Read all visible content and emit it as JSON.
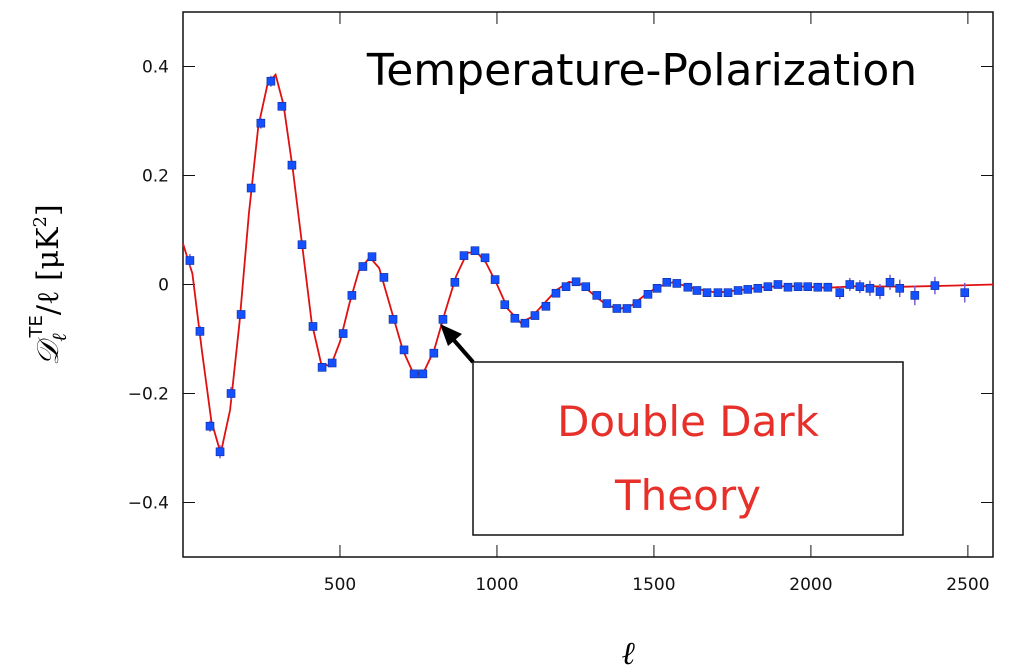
{
  "chart_data": {
    "type": "scatter",
    "title": "Temperature-Polarization",
    "x_label": "ℓ",
    "y_label": {
      "symbol": "𝒟",
      "subscript": "ℓ",
      "superscript": "TE",
      "rest": "/ℓ [μK",
      "power": "2",
      "close": "]"
    },
    "annotation": {
      "lines": [
        "Double Dark",
        "Theory"
      ],
      "color": "#e8302a"
    },
    "xlim": [
      0,
      2580
    ],
    "ylim": [
      -0.5,
      0.5
    ],
    "xticks": [
      500,
      1000,
      1500,
      2000,
      2500
    ],
    "yticks": [
      0.4,
      0.2,
      0,
      {
        "value": -0.2,
        "label": "−0.2"
      },
      {
        "value": -0.4,
        "label": "−0.4"
      }
    ],
    "series": [
      {
        "x": [
          22,
          54,
          86,
          118,
          153,
          185,
          217,
          248,
          280,
          315,
          347,
          379,
          414,
          443,
          475,
          510,
          538,
          573,
          602,
          640,
          669,
          704,
          736,
          764,
          799,
          828,
          866,
          895,
          930,
          962,
          994,
          1025,
          1057,
          1089,
          1121,
          1156,
          1188,
          1220,
          1252,
          1283,
          1318,
          1350,
          1382,
          1414,
          1446,
          1481,
          1510,
          1541,
          1573,
          1608,
          1637,
          1669,
          1704,
          1736,
          1768,
          1799,
          1831,
          1863,
          1895,
          1927,
          1959,
          1990,
          2022,
          2054,
          2092,
          2124,
          2156,
          2188,
          2220,
          2252,
          2283,
          2331,
          2395,
          2490
        ],
        "values": [
          0.044,
          -0.086,
          -0.26,
          -0.307,
          -0.2,
          -0.055,
          0.177,
          0.296,
          0.373,
          0.327,
          0.219,
          0.073,
          -0.077,
          -0.152,
          -0.144,
          -0.09,
          -0.02,
          0.033,
          0.051,
          0.013,
          -0.064,
          -0.12,
          -0.164,
          -0.164,
          -0.126,
          -0.064,
          0.004,
          0.053,
          0.062,
          0.049,
          0.009,
          -0.037,
          -0.062,
          -0.071,
          -0.057,
          -0.04,
          -0.016,
          -0.004,
          0.005,
          -0.004,
          -0.02,
          -0.035,
          -0.044,
          -0.044,
          -0.035,
          -0.018,
          -0.007,
          0.004,
          0.002,
          -0.005,
          -0.011,
          -0.015,
          -0.015,
          -0.015,
          -0.011,
          -0.009,
          -0.007,
          -0.004,
          0,
          -0.005,
          -0.004,
          -0.004,
          -0.005,
          -0.005,
          -0.015,
          0,
          -0.004,
          -0.007,
          -0.013,
          0.004,
          -0.007,
          -0.02,
          -0.002,
          -0.015
        ],
        "errors": [
          0.012,
          0.01,
          0.01,
          0.012,
          0.012,
          0.008,
          0.008,
          0.01,
          0.01,
          0.008,
          0.005,
          0.005,
          0.005,
          0.005,
          0.005,
          0.005,
          0.005,
          0.005,
          0.005,
          0.005,
          0.005,
          0.005,
          0.005,
          0.005,
          0.005,
          0.005,
          0.005,
          0.005,
          0.005,
          0.005,
          0.005,
          0.005,
          0.005,
          0.005,
          0.005,
          0.005,
          0.005,
          0.005,
          0.005,
          0.005,
          0.005,
          0.005,
          0.005,
          0.005,
          0.005,
          0.005,
          0.005,
          0.005,
          0.005,
          0.005,
          0.005,
          0.005,
          0.005,
          0.005,
          0.005,
          0.005,
          0.005,
          0.005,
          0.005,
          0.005,
          0.006,
          0.006,
          0.008,
          0.008,
          0.012,
          0.012,
          0.012,
          0.014,
          0.014,
          0.014,
          0.016,
          0.018,
          0.016,
          0.018
        ],
        "color": "#1450ff",
        "error_color": "#7a5cd6"
      }
    ],
    "theory": {
      "color": "#e01010",
      "x": [
        0,
        30,
        60,
        90,
        120,
        150,
        180,
        210,
        240,
        270,
        295,
        320,
        350,
        380,
        410,
        440,
        470,
        500,
        530,
        560,
        595,
        625,
        660,
        700,
        735,
        765,
        800,
        835,
        870,
        905,
        935,
        965,
        1000,
        1035,
        1075,
        1110,
        1150,
        1190,
        1230,
        1270,
        1310,
        1350,
        1390,
        1430,
        1470,
        1510,
        1560,
        1620,
        1700,
        1780,
        1860,
        1950,
        2050,
        2150,
        2300,
        2450,
        2580
      ],
      "values": [
        0.075,
        0.02,
        -0.12,
        -0.25,
        -0.31,
        -0.23,
        -0.07,
        0.13,
        0.29,
        0.37,
        0.385,
        0.33,
        0.21,
        0.07,
        -0.07,
        -0.145,
        -0.15,
        -0.105,
        -0.035,
        0.025,
        0.05,
        0.03,
        -0.04,
        -0.12,
        -0.165,
        -0.163,
        -0.12,
        -0.05,
        0.015,
        0.058,
        0.06,
        0.04,
        0,
        -0.045,
        -0.07,
        -0.06,
        -0.035,
        -0.01,
        0.005,
        0,
        -0.02,
        -0.038,
        -0.045,
        -0.038,
        -0.02,
        -0.005,
        0.004,
        -0.006,
        -0.015,
        -0.01,
        -0.004,
        -0.003,
        -0.006,
        -0.003,
        -0.004,
        -0.002,
        0
      ]
    }
  }
}
